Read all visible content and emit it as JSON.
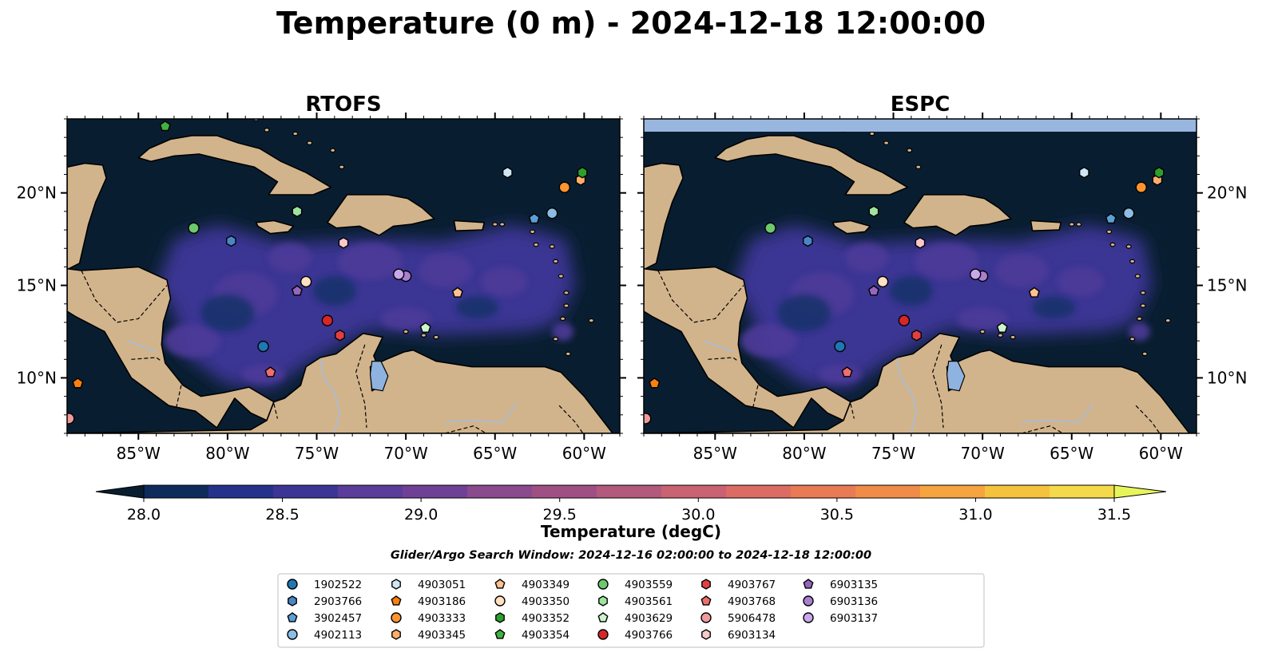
{
  "figure_title": "Temperature (0 m) - 2024-12-18 12:00:00",
  "colorbar": {
    "label": "Temperature (degC)",
    "min": 28.0,
    "max": 31.5,
    "extend": "both",
    "ticks": [
      "28.0",
      "28.5",
      "29.0",
      "29.5",
      "30.0",
      "30.5",
      "31.0",
      "31.5"
    ],
    "colors": [
      "#081e30",
      "#0d2c5c",
      "#25328b",
      "#3c3596",
      "#5a3c9a",
      "#6f4196",
      "#8a4a8e",
      "#a04f85",
      "#b3597c",
      "#c96272",
      "#dc6c63",
      "#e87a55",
      "#f08c48",
      "#f5a440",
      "#f5c23d",
      "#f4d94a",
      "#e7f55a"
    ]
  },
  "search_window": "Glider/Argo Search Window: 2024-12-16 02:00:00 to 2024-12-18 12:00:00",
  "map_colors": {
    "land": "#d2b48c",
    "ocean_cold": "#081e30",
    "warm_pool": "#3b3593",
    "warm_pool_inner": "#4e3a99",
    "lake": "#8fb3e0",
    "river": "#a6bddb",
    "missing_band": "#98b6e0"
  },
  "chart_data": [
    {
      "type": "heatmap",
      "title": "RTOFS",
      "variable": "Temperature (degC)",
      "xlim": [
        -89,
        -58
      ],
      "ylim": [
        7,
        24
      ],
      "x_ticks": [
        -85,
        -80,
        -75,
        -70,
        -65,
        -60
      ],
      "y_ticks": [
        10,
        15,
        20
      ],
      "x_tick_labels": [
        "85°W",
        "80°W",
        "75°W",
        "70°W",
        "65°W",
        "60°W"
      ],
      "y_tick_labels": [
        "10°N",
        "15°N",
        "20°N"
      ],
      "y_tick_side": "left"
    },
    {
      "type": "heatmap",
      "title": "ESPC",
      "variable": "Temperature (degC)",
      "xlim": [
        -89,
        -58
      ],
      "ylim": [
        7,
        24
      ],
      "x_ticks": [
        -85,
        -80,
        -75,
        -70,
        -65,
        -60
      ],
      "y_ticks": [
        10,
        15,
        20
      ],
      "x_tick_labels": [
        "85°W",
        "80°W",
        "75°W",
        "70°W",
        "65°W",
        "60°W"
      ],
      "y_tick_labels": [
        "10°N",
        "15°N",
        "20°N"
      ],
      "y_tick_side": "right"
    }
  ],
  "platforms": [
    {
      "id": "1902522",
      "marker": "circle",
      "color": "#1f77b4",
      "lon": -78.0,
      "lat": 11.7
    },
    {
      "id": "2903766",
      "marker": "hexagon",
      "color": "#4a86c5",
      "lon": -79.8,
      "lat": 17.4
    },
    {
      "id": "3902457",
      "marker": "pentagon",
      "color": "#5aa0d6",
      "lon": -62.8,
      "lat": 18.6
    },
    {
      "id": "4902113",
      "marker": "circle",
      "color": "#8bbde6",
      "lon": -61.8,
      "lat": 18.9
    },
    {
      "id": "4903051",
      "marker": "hexagon",
      "color": "#cfe6f5",
      "lon": -64.3,
      "lat": 21.1
    },
    {
      "id": "4903186",
      "marker": "pentagon",
      "color": "#ff7f0e",
      "lon": -88.4,
      "lat": 9.7
    },
    {
      "id": "4903333",
      "marker": "circle",
      "color": "#ff9430",
      "lon": -61.1,
      "lat": 20.3
    },
    {
      "id": "4903345",
      "marker": "hexagon",
      "color": "#ffae6b",
      "lon": -60.2,
      "lat": 20.7
    },
    {
      "id": "4903349",
      "marker": "pentagon",
      "color": "#ffc28f",
      "lon": -67.1,
      "lat": 14.6
    },
    {
      "id": "4903350",
      "marker": "circle",
      "color": "#ffe0c0",
      "lon": -75.6,
      "lat": 15.2
    },
    {
      "id": "4903352",
      "marker": "hexagon",
      "color": "#2ca02c",
      "lon": -60.1,
      "lat": 21.1
    },
    {
      "id": "4903354",
      "marker": "pentagon",
      "color": "#3fb33f",
      "lon": -83.5,
      "lat": 23.6
    },
    {
      "id": "4903559",
      "marker": "circle",
      "color": "#6cc96c",
      "lon": -81.9,
      "lat": 18.1
    },
    {
      "id": "4903561",
      "marker": "hexagon",
      "color": "#9ee39e",
      "lon": -76.1,
      "lat": 19.0
    },
    {
      "id": "4903629",
      "marker": "pentagon",
      "color": "#ccf5cc",
      "lon": -68.9,
      "lat": 12.7
    },
    {
      "id": "4903766",
      "marker": "circle",
      "color": "#d62728",
      "lon": -74.4,
      "lat": 13.1
    },
    {
      "id": "4903767",
      "marker": "hexagon",
      "color": "#e24040",
      "lon": -73.7,
      "lat": 12.3
    },
    {
      "id": "4903768",
      "marker": "pentagon",
      "color": "#ef6f6f",
      "lon": -77.6,
      "lat": 10.3
    },
    {
      "id": "5906478",
      "marker": "circle",
      "color": "#f19a9a",
      "lon": -88.9,
      "lat": 7.8
    },
    {
      "id": "6903134",
      "marker": "hexagon",
      "color": "#f9c9c9",
      "lon": -73.5,
      "lat": 17.3
    },
    {
      "id": "6903135",
      "marker": "pentagon",
      "color": "#9467bd",
      "lon": -76.1,
      "lat": 14.7
    },
    {
      "id": "6903136",
      "marker": "circle",
      "color": "#a97fd0",
      "lon": -70.0,
      "lat": 15.5
    },
    {
      "id": "6903137",
      "marker": "circle",
      "color": "#c8a8ea",
      "lon": -70.4,
      "lat": 15.6
    }
  ]
}
